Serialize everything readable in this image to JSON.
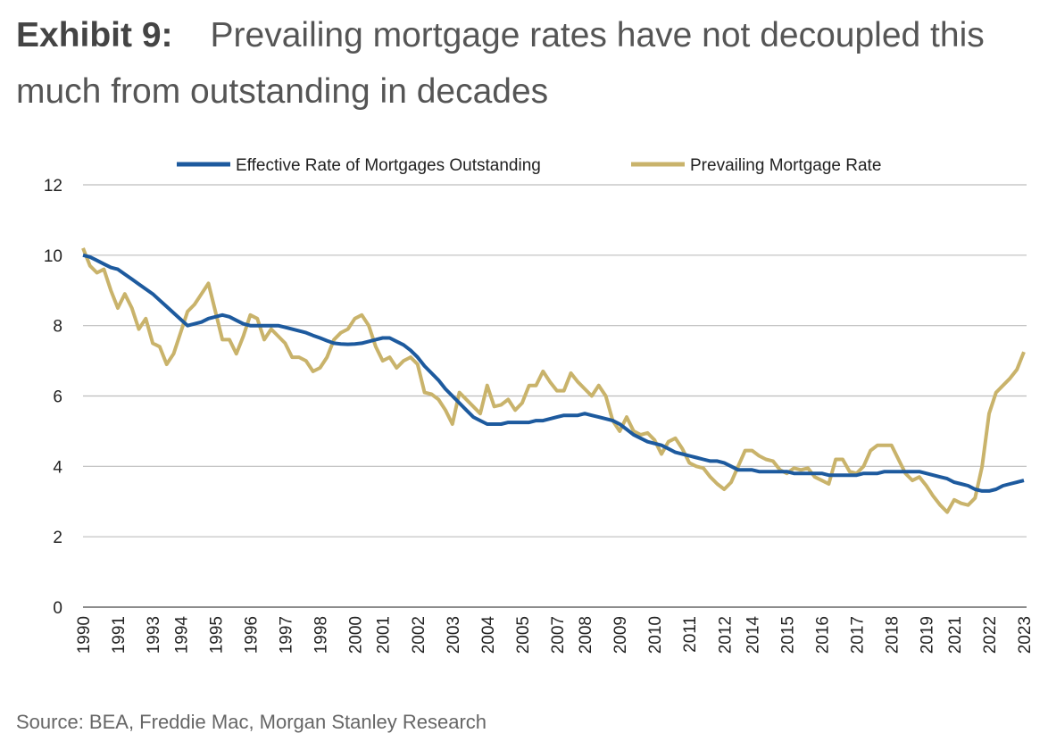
{
  "chart_data": {
    "type": "line",
    "title_label": "Exhibit 9:",
    "title": "Prevailing mortgage rates have not decoupled this much from outstanding in decades",
    "source": "Source: BEA, Freddie Mac, Morgan Stanley Research",
    "categories": [
      "1990",
      null,
      null,
      null,
      null,
      "1991",
      null,
      null,
      null,
      null,
      "1993",
      null,
      null,
      null,
      "1994",
      null,
      null,
      null,
      null,
      "1995",
      null,
      null,
      null,
      null,
      "1996",
      null,
      null,
      null,
      null,
      "1997",
      null,
      null,
      null,
      null,
      "1998",
      null,
      null,
      null,
      null,
      "2000",
      null,
      null,
      null,
      "2001",
      null,
      null,
      null,
      null,
      "2002",
      null,
      null,
      null,
      null,
      "2003",
      null,
      null,
      null,
      null,
      "2004",
      null,
      null,
      null,
      null,
      "2005",
      null,
      null,
      null,
      null,
      "2007",
      null,
      null,
      null,
      "2008",
      null,
      null,
      null,
      null,
      "2009",
      null,
      null,
      null,
      null,
      "2010",
      null,
      null,
      null,
      null,
      "2011",
      null,
      null,
      null,
      null,
      "2012",
      null,
      null,
      null,
      "2014",
      null,
      null,
      null,
      null,
      "2015",
      null,
      null,
      null,
      null,
      "2016",
      null,
      null,
      null,
      null,
      "2017",
      null,
      null,
      null,
      null,
      "2018",
      null,
      null,
      null,
      null,
      "2019",
      null,
      null,
      null,
      "2021",
      null,
      null,
      null,
      null,
      "2022",
      null,
      null,
      null,
      null,
      "2023"
    ],
    "series": [
      {
        "name": "Effective Rate of Mortgages Outstanding",
        "color": "#1d5a9e",
        "values": [
          10.0,
          9.95,
          9.85,
          9.75,
          9.65,
          9.6,
          9.46,
          9.32,
          9.18,
          9.04,
          8.9,
          8.72,
          8.54,
          8.36,
          8.18,
          8.0,
          8.05,
          8.1,
          8.2,
          8.25,
          8.3,
          8.25,
          8.15,
          8.05,
          8.0,
          8.0,
          8.0,
          8.0,
          8.0,
          7.95,
          7.9,
          7.85,
          7.8,
          7.72,
          7.65,
          7.57,
          7.5,
          7.48,
          7.47,
          7.48,
          7.5,
          7.55,
          7.6,
          7.65,
          7.65,
          7.55,
          7.45,
          7.3,
          7.1,
          6.85,
          6.65,
          6.45,
          6.2,
          6.0,
          5.8,
          5.6,
          5.4,
          5.3,
          5.2,
          5.2,
          5.2,
          5.25,
          5.25,
          5.25,
          5.25,
          5.3,
          5.3,
          5.35,
          5.4,
          5.45,
          5.45,
          5.45,
          5.5,
          5.45,
          5.4,
          5.35,
          5.3,
          5.2,
          5.05,
          4.9,
          4.8,
          4.7,
          4.65,
          4.6,
          4.5,
          4.4,
          4.35,
          4.3,
          4.25,
          4.2,
          4.15,
          4.15,
          4.1,
          4.0,
          3.9,
          3.9,
          3.9,
          3.85,
          3.85,
          3.85,
          3.85,
          3.85,
          3.8,
          3.8,
          3.8,
          3.8,
          3.8,
          3.75,
          3.75,
          3.75,
          3.75,
          3.75,
          3.8,
          3.8,
          3.8,
          3.85,
          3.85,
          3.85,
          3.85,
          3.85,
          3.85,
          3.8,
          3.75,
          3.7,
          3.65,
          3.55,
          3.5,
          3.45,
          3.35,
          3.3,
          3.3,
          3.35,
          3.45,
          3.5,
          3.55,
          3.6
        ]
      },
      {
        "name": "Prevailing Mortgage Rate",
        "color": "#c9b36b",
        "values": [
          10.2,
          9.7,
          9.5,
          9.6,
          9.0,
          8.5,
          8.9,
          8.5,
          7.9,
          8.2,
          7.5,
          7.4,
          6.9,
          7.2,
          7.8,
          8.4,
          8.6,
          8.9,
          9.2,
          8.4,
          7.6,
          7.6,
          7.2,
          7.7,
          8.3,
          8.2,
          7.6,
          7.9,
          7.7,
          7.5,
          7.1,
          7.1,
          7.0,
          6.7,
          6.8,
          7.1,
          7.6,
          7.8,
          7.9,
          8.2,
          8.3,
          8.0,
          7.4,
          7.0,
          7.1,
          6.8,
          7.0,
          7.1,
          6.9,
          6.1,
          6.05,
          5.9,
          5.6,
          5.2,
          6.1,
          5.9,
          5.7,
          5.5,
          6.3,
          5.7,
          5.75,
          5.9,
          5.6,
          5.8,
          6.3,
          6.3,
          6.7,
          6.4,
          6.15,
          6.15,
          6.65,
          6.4,
          6.2,
          6.0,
          6.3,
          6.0,
          5.3,
          5.0,
          5.4,
          5.0,
          4.9,
          4.95,
          4.75,
          4.35,
          4.7,
          4.8,
          4.5,
          4.1,
          4.0,
          3.95,
          3.7,
          3.5,
          3.35,
          3.55,
          4.0,
          4.45,
          4.45,
          4.3,
          4.2,
          4.15,
          3.9,
          3.8,
          3.95,
          3.9,
          3.95,
          3.7,
          3.6,
          3.5,
          4.2,
          4.2,
          3.85,
          3.8,
          4.0,
          4.45,
          4.6,
          4.6,
          4.6,
          4.2,
          3.8,
          3.6,
          3.7,
          3.45,
          3.15,
          2.9,
          2.7,
          3.05,
          2.95,
          2.9,
          3.1,
          4.0,
          5.5,
          6.1,
          6.3,
          6.5,
          6.75,
          7.25
        ]
      }
    ],
    "ylim": [
      0,
      12
    ],
    "yticks": [
      0,
      2,
      4,
      6,
      8,
      10,
      12
    ],
    "grid": true,
    "legend": "top"
  }
}
